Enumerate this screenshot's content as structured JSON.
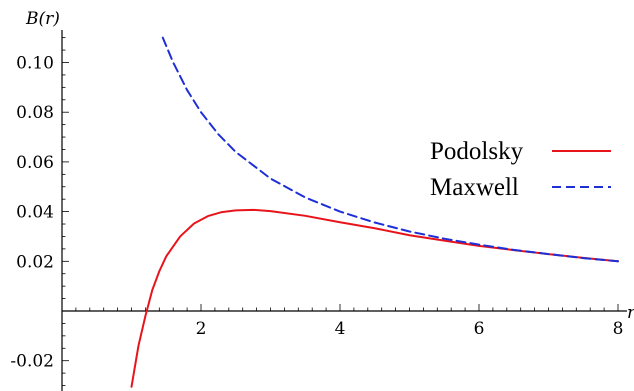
{
  "chart_data": {
    "type": "line",
    "title": "",
    "xlabel": "r",
    "ylabel": "B(r)",
    "xlim": [
      0,
      8.2
    ],
    "ylim": [
      -0.03,
      0.111
    ],
    "x_ticks": [
      {
        "value": 2,
        "label": "2"
      },
      {
        "value": 4,
        "label": "4"
      },
      {
        "value": 6,
        "label": "6"
      },
      {
        "value": 8,
        "label": "8"
      }
    ],
    "y_ticks": [
      {
        "value": -0.02,
        "label": "-0.02"
      },
      {
        "value": 0.02,
        "label": "0.02"
      },
      {
        "value": 0.04,
        "label": "0.04"
      },
      {
        "value": 0.06,
        "label": "0.06"
      },
      {
        "value": 0.08,
        "label": "0.08"
      },
      {
        "value": 0.1,
        "label": "0.10"
      }
    ],
    "grid": false,
    "legend_position": "right",
    "series": [
      {
        "name": "Podolsky",
        "color": "#e8141b",
        "style": "solid",
        "x": [
          1.0,
          1.1,
          1.2,
          1.3,
          1.4,
          1.5,
          1.7,
          1.9,
          2.1,
          2.3,
          2.5,
          2.75,
          3.0,
          3.5,
          4.0,
          4.5,
          5.0,
          5.5,
          6.0,
          6.5,
          7.0,
          7.5,
          8.0
        ],
        "y": [
          -0.0305,
          -0.014,
          -0.002,
          0.0085,
          0.016,
          0.022,
          0.03,
          0.0352,
          0.0382,
          0.0398,
          0.0405,
          0.0407,
          0.0402,
          0.0383,
          0.0357,
          0.0333,
          0.0305,
          0.0283,
          0.0262,
          0.0245,
          0.0229,
          0.0214,
          0.02
        ]
      },
      {
        "name": "Maxwell",
        "color": "#1f2fd6",
        "style": "dashed",
        "x": [
          1.45,
          1.6,
          1.8,
          2.0,
          2.25,
          2.5,
          3.0,
          3.5,
          4.0,
          4.5,
          5.0,
          5.5,
          6.0,
          6.5,
          7.0,
          7.5,
          8.0
        ],
        "y": [
          0.11,
          0.1,
          0.0889,
          0.08,
          0.0711,
          0.064,
          0.0533,
          0.0457,
          0.04,
          0.0356,
          0.032,
          0.0291,
          0.0267,
          0.0246,
          0.0229,
          0.0213,
          0.02
        ]
      }
    ]
  }
}
